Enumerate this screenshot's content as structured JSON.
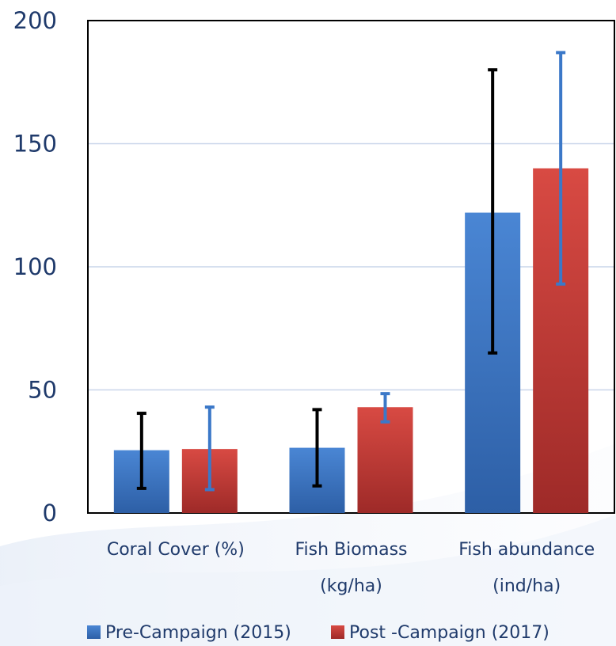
{
  "chart_data": {
    "type": "bar",
    "categories": [
      [
        "Coral Cover (%)"
      ],
      [
        "Fish Biomass",
        "(kg/ha)"
      ],
      [
        "Fish abundance",
        "(ind/ha)"
      ]
    ],
    "series": [
      {
        "name": "Pre-Campaign (2015)",
        "color": "#3b78c8",
        "error_color": "#000000",
        "values": [
          25.5,
          26.5,
          122
        ],
        "error_low": [
          10,
          11,
          65
        ],
        "error_high": [
          40.5,
          42,
          180
        ]
      },
      {
        "name": "Post -Campaign (2017)",
        "color": "#c93a36",
        "error_color": "#3b78c8",
        "values": [
          26,
          43,
          140
        ],
        "error_low": [
          9.5,
          37,
          93
        ],
        "error_high": [
          43,
          48.5,
          187
        ]
      }
    ],
    "yticks": [
      0,
      50,
      100,
      150,
      200
    ],
    "ylim": [
      0,
      200
    ],
    "grid": true,
    "legend_position": "bottom"
  }
}
